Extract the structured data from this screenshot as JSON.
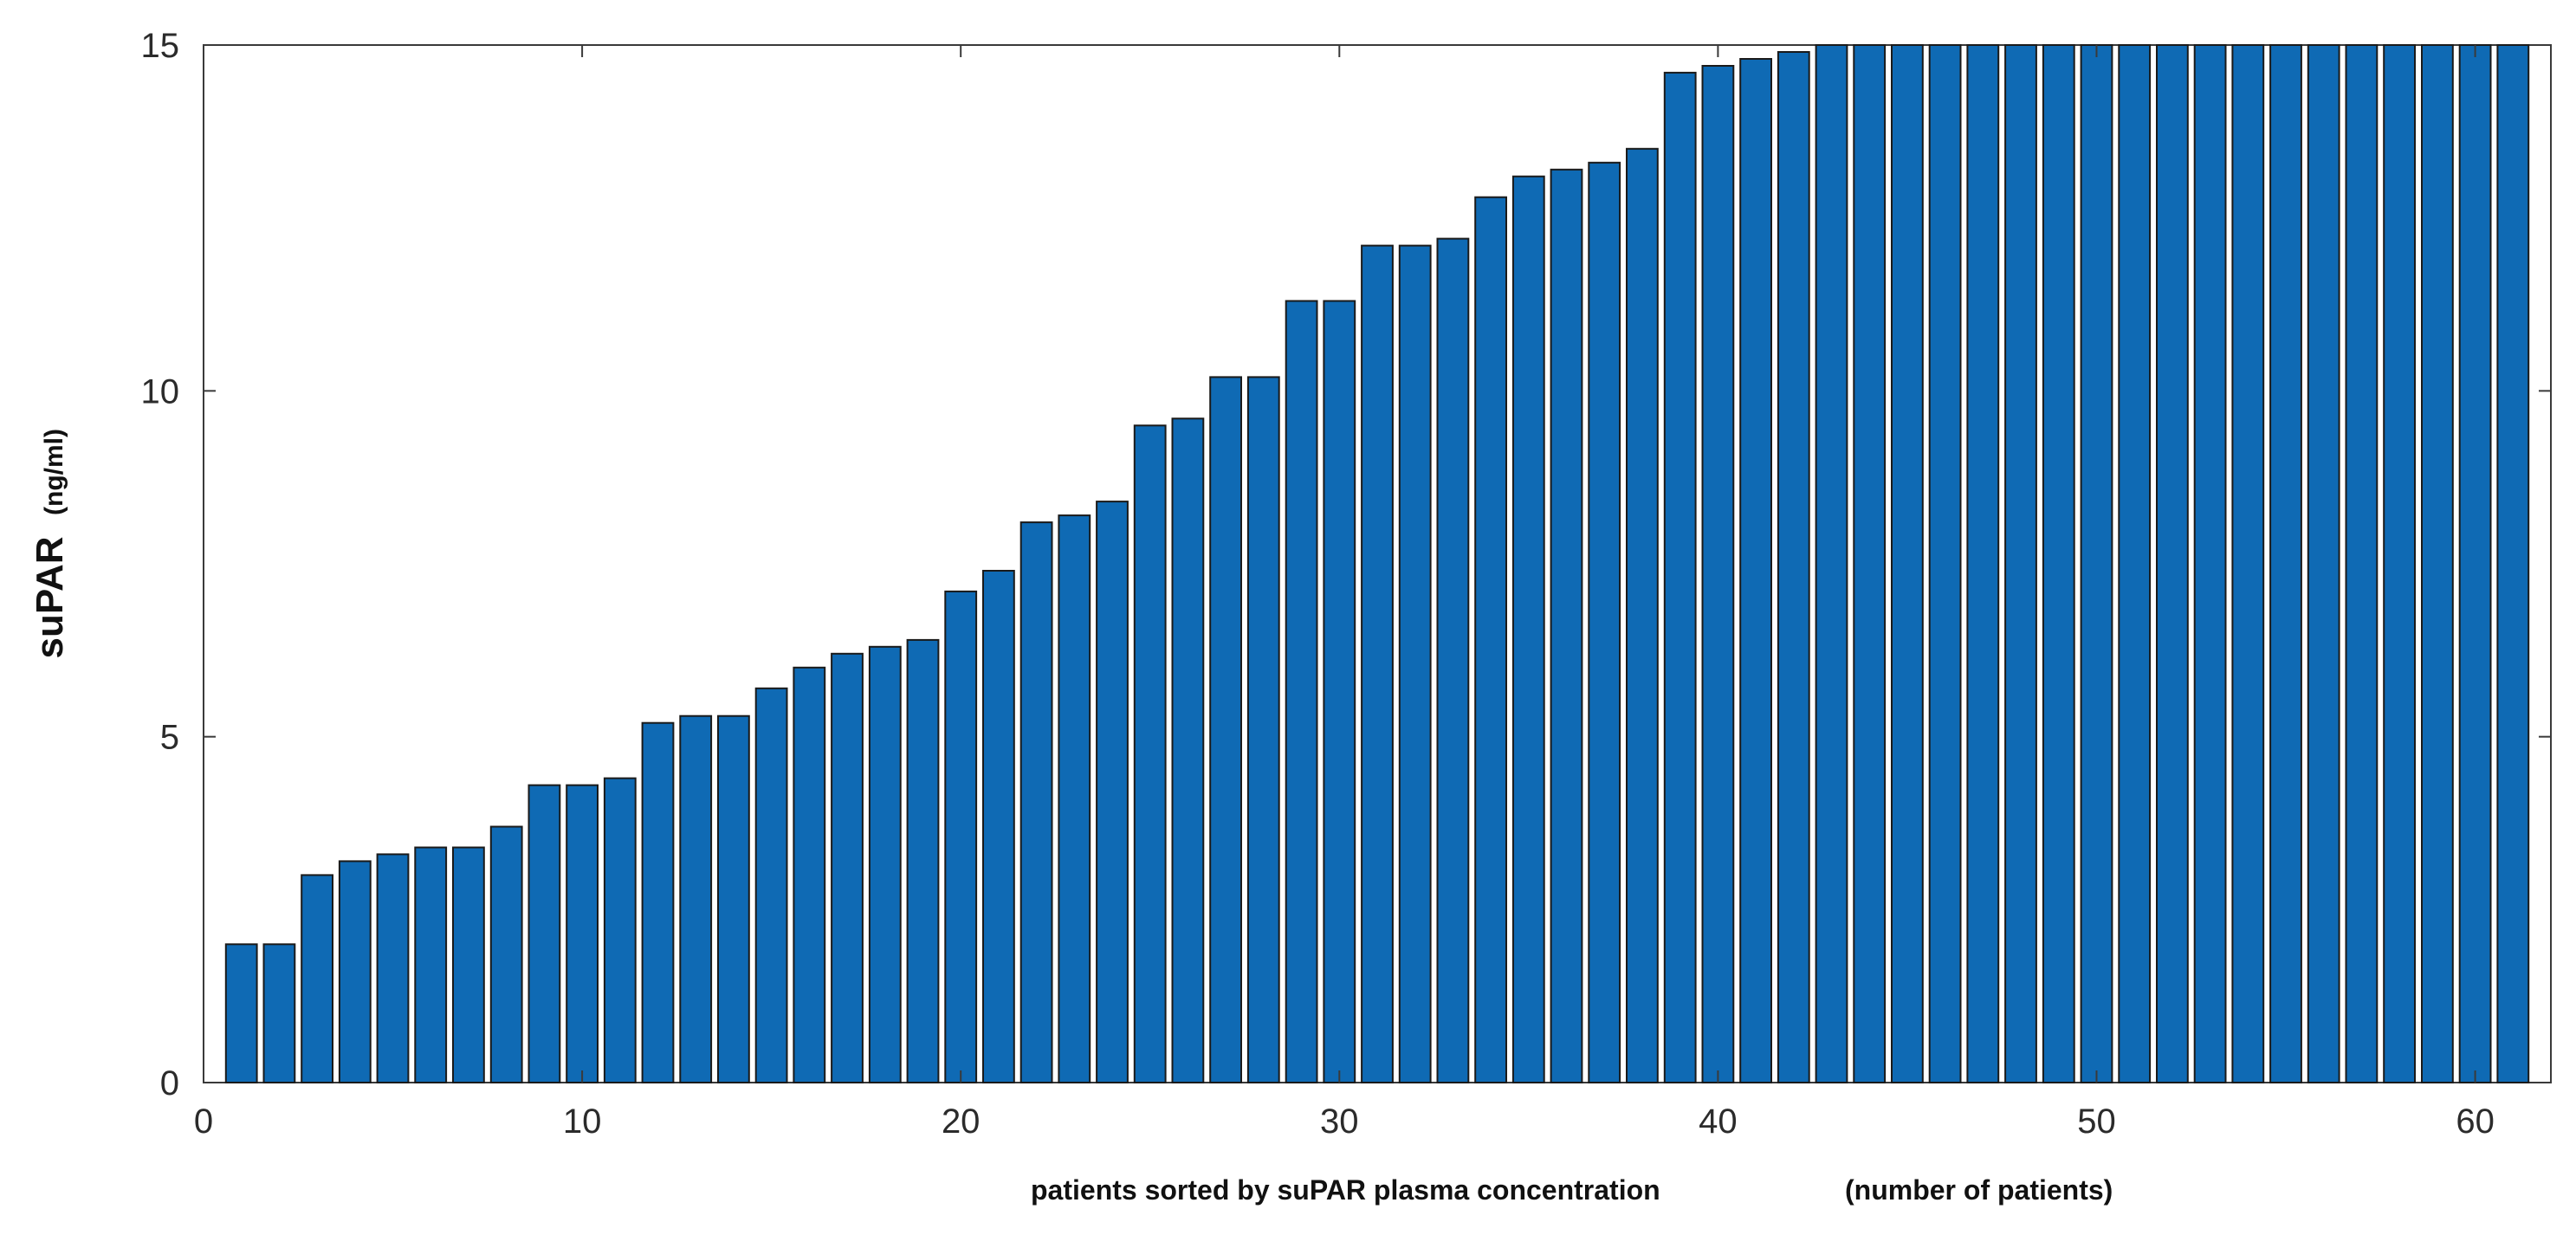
{
  "chart_data": {
    "type": "bar",
    "title": "",
    "xlabel": "patients sorted by suPAR plasma concentration",
    "xlabel_suffix": "(number of patients)",
    "ylabel": "suPAR",
    "ylabel_unit": "(ng/ml)",
    "xlim": [
      0,
      62
    ],
    "ylim": [
      0,
      15
    ],
    "xticks": [
      0,
      10,
      20,
      30,
      40,
      50,
      60
    ],
    "yticks": [
      0,
      5,
      10,
      15
    ],
    "grid": false,
    "colors": {
      "bar_fill": "#0F6AB4",
      "bar_edge": "#1a1a1a",
      "axis": "#3a3a3a"
    },
    "x": [
      1,
      2,
      3,
      4,
      5,
      6,
      7,
      8,
      9,
      10,
      11,
      12,
      13,
      14,
      15,
      16,
      17,
      18,
      19,
      20,
      21,
      22,
      23,
      24,
      25,
      26,
      27,
      28,
      29,
      30,
      31,
      32,
      33,
      34,
      35,
      36,
      37,
      38,
      39,
      40,
      41,
      42,
      43,
      44,
      45,
      46,
      47,
      48,
      49,
      50,
      51,
      52,
      53,
      54,
      55,
      56,
      57,
      58,
      59,
      60,
      61
    ],
    "values": [
      2.0,
      2.0,
      3.0,
      3.2,
      3.3,
      3.4,
      3.4,
      3.7,
      4.3,
      4.3,
      4.4,
      5.2,
      5.3,
      5.3,
      5.7,
      6.0,
      6.2,
      6.3,
      6.4,
      7.1,
      7.4,
      8.1,
      8.2,
      8.4,
      9.5,
      9.6,
      10.2,
      10.2,
      11.3,
      11.3,
      12.1,
      12.1,
      12.2,
      12.8,
      13.1,
      13.2,
      13.3,
      13.5,
      14.6,
      14.7,
      14.8,
      14.9,
      15,
      15,
      15,
      15,
      15,
      15,
      15,
      15,
      15,
      15,
      15,
      15,
      15,
      15,
      15,
      15,
      15,
      15,
      15
    ]
  }
}
